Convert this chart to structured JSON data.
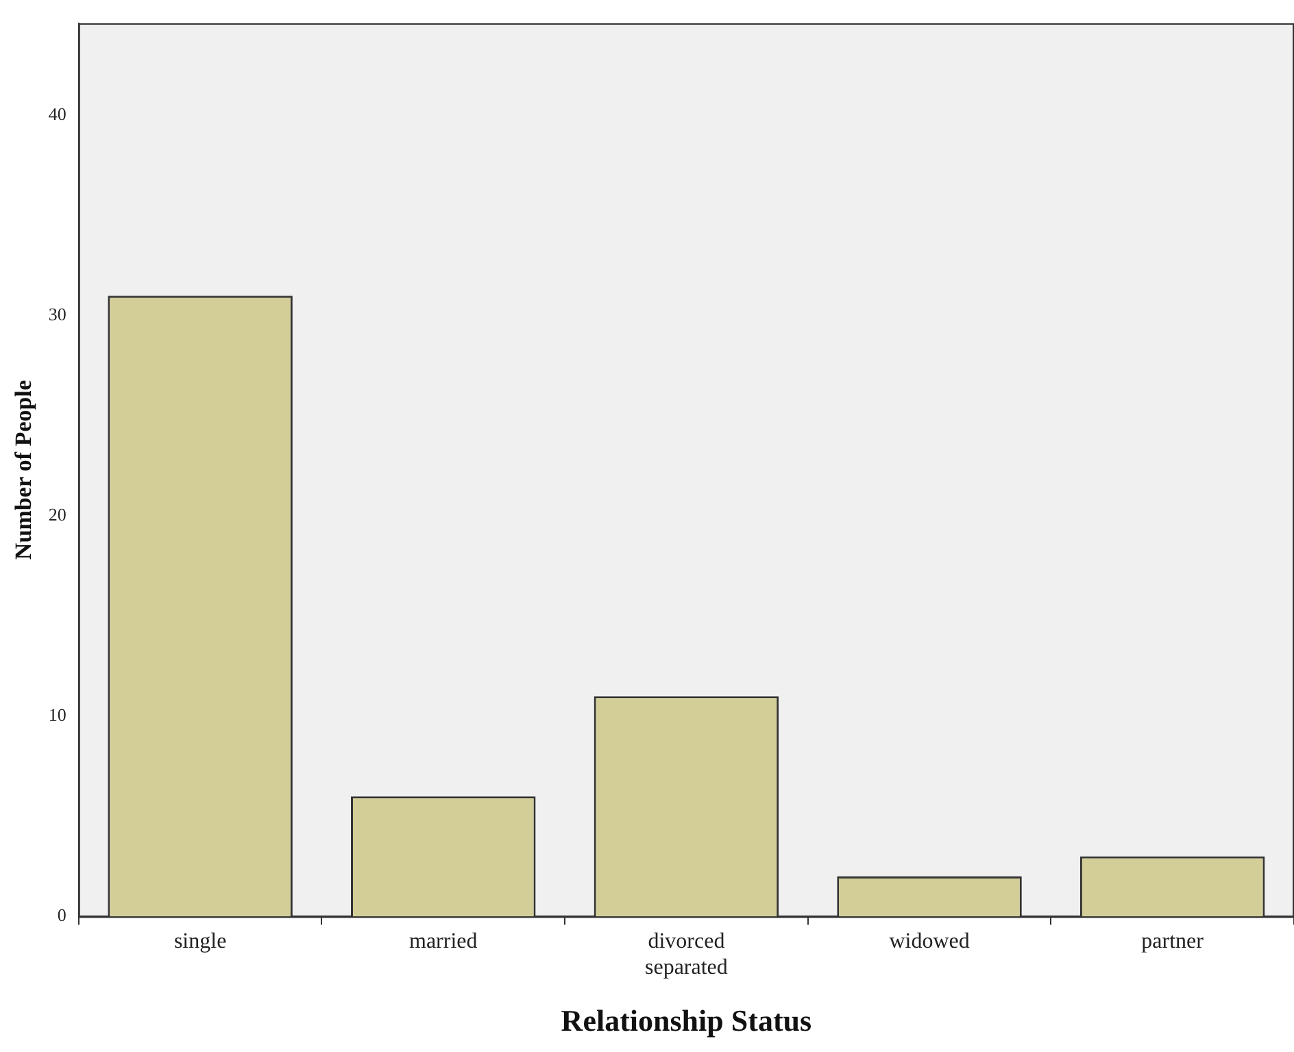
{
  "chart_data": {
    "type": "bar",
    "xlabel": "Relationship Status",
    "ylabel": "Number of People",
    "categories": [
      "single",
      "married",
      "divorced\nseparated",
      "widowed",
      "partner"
    ],
    "values": [
      31,
      6,
      11,
      2,
      3
    ],
    "color": "#d3ce97",
    "ylim": [
      0,
      44.6
    ],
    "yticks": [
      0,
      10,
      20,
      30,
      40
    ],
    "grid": false,
    "legend": false
  }
}
